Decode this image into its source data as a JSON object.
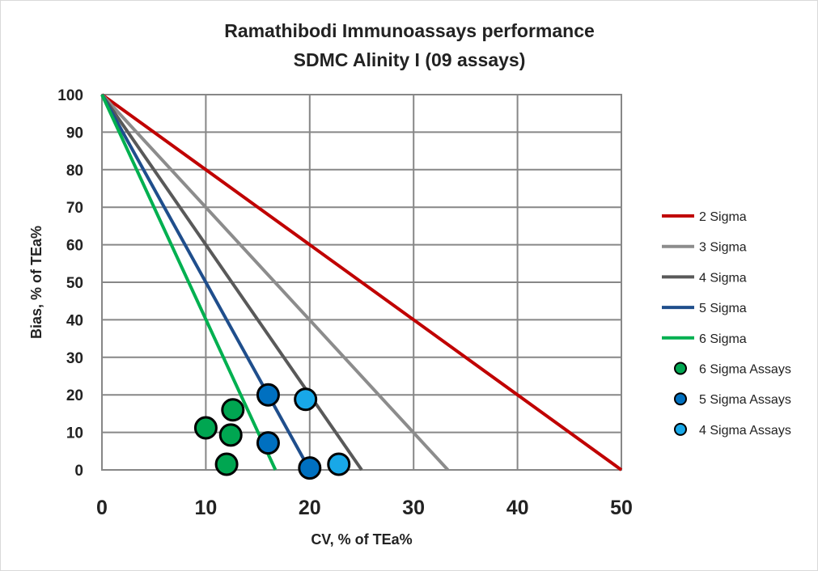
{
  "chart_data": {
    "type": "scatter",
    "title": "Ramathibodi Immunoassays performance",
    "subtitle": "SDMC Alinity I (09 assays)",
    "xlabel": "CV, % of TEa%",
    "ylabel": "Bias, % of TEa%",
    "xlim": [
      0,
      50
    ],
    "ylim": [
      0,
      100
    ],
    "xticks": [
      0,
      10,
      20,
      30,
      40,
      50
    ],
    "yticks": [
      0,
      10,
      20,
      30,
      40,
      50,
      60,
      70,
      80,
      90,
      100
    ],
    "grid": true,
    "legend_position": "right",
    "lines": [
      {
        "name": "2 Sigma",
        "color": "#c00000",
        "x": [
          0,
          50
        ],
        "y": [
          100,
          0
        ]
      },
      {
        "name": "3 Sigma",
        "color": "#8c8c8c",
        "x": [
          0,
          33.3
        ],
        "y": [
          100,
          0
        ]
      },
      {
        "name": "4 Sigma",
        "color": "#595959",
        "x": [
          0,
          25
        ],
        "y": [
          100,
          0
        ]
      },
      {
        "name": "5 Sigma",
        "color": "#1f4e8c",
        "x": [
          0,
          20
        ],
        "y": [
          100,
          0
        ]
      },
      {
        "name": "6 Sigma",
        "color": "#00b050",
        "x": [
          0,
          16.7
        ],
        "y": [
          100,
          0
        ]
      }
    ],
    "series": [
      {
        "name": "6 Sigma Assays",
        "color": "#00a651",
        "points": [
          [
            10.0,
            11.2
          ],
          [
            12.6,
            16.0
          ],
          [
            12.4,
            9.3
          ],
          [
            12.0,
            1.5
          ]
        ]
      },
      {
        "name": "5 Sigma Assays",
        "color": "#0070c0",
        "points": [
          [
            16.0,
            20.0
          ],
          [
            16.0,
            7.2
          ],
          [
            20.0,
            0.5
          ]
        ]
      },
      {
        "name": "4 Sigma Assays",
        "color": "#18a8e8",
        "points": [
          [
            19.6,
            18.8
          ],
          [
            22.8,
            1.5
          ]
        ]
      }
    ]
  }
}
